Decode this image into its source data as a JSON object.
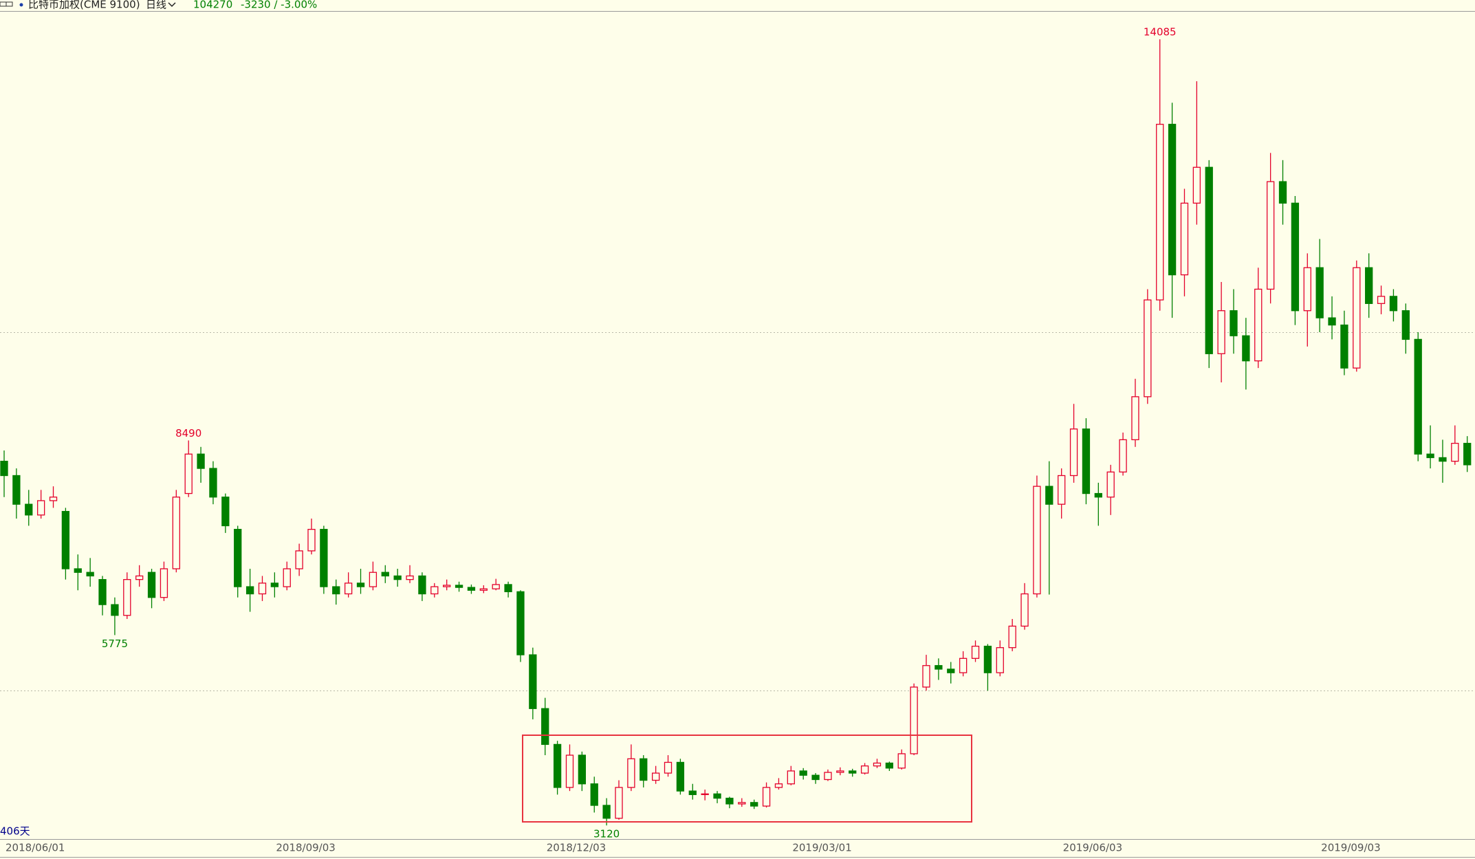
{
  "header": {
    "symbol": "比特币加权(CME 9100)",
    "period": "日线",
    "price": 104270,
    "change": "-3230 / -3.00%"
  },
  "chart_data": {
    "type": "candlestick",
    "days_label": "406天",
    "categories": [
      "2018/06/01",
      null,
      null,
      null,
      null,
      null,
      null,
      null,
      null,
      null,
      null,
      null,
      null,
      null,
      null,
      null,
      null,
      null,
      null,
      null,
      null,
      null,
      "2018/09/03",
      null,
      null,
      null,
      null,
      null,
      null,
      null,
      null,
      null,
      null,
      null,
      null,
      null,
      null,
      null,
      null,
      null,
      null,
      null,
      null,
      null,
      "2018/12/03",
      null,
      null,
      null,
      null,
      null,
      null,
      null,
      null,
      null,
      null,
      null,
      null,
      null,
      null,
      null,
      null,
      null,
      null,
      null,
      "2019/03/01",
      null,
      null,
      null,
      null,
      null,
      null,
      null,
      null,
      null,
      null,
      null,
      null,
      null,
      null,
      null,
      null,
      null,
      null,
      null,
      null,
      null,
      "2019/06/03",
      null,
      null,
      null,
      null,
      null,
      null,
      null,
      null,
      null,
      null,
      null,
      null,
      null,
      null,
      null,
      null,
      null,
      null,
      null,
      null,
      "2019/09/03",
      null,
      null,
      null,
      null,
      null,
      null,
      null,
      null,
      null,
      null,
      null,
      null
    ],
    "ohlc": [
      [
        8200,
        8350,
        7700,
        8000
      ],
      [
        8000,
        8100,
        7400,
        7600
      ],
      [
        7600,
        7800,
        7300,
        7450
      ],
      [
        7450,
        7800,
        7400,
        7650
      ],
      [
        7650,
        7850,
        7550,
        7700
      ],
      [
        7500,
        7550,
        6550,
        6700
      ],
      [
        6700,
        6900,
        6400,
        6650
      ],
      [
        6650,
        6850,
        6450,
        6600
      ],
      [
        6550,
        6600,
        6050,
        6200
      ],
      [
        6200,
        6300,
        5775,
        6050
      ],
      [
        6050,
        6650,
        6000,
        6550
      ],
      [
        6550,
        6750,
        6450,
        6600
      ],
      [
        6650,
        6700,
        6150,
        6300
      ],
      [
        6300,
        6800,
        6250,
        6700
      ],
      [
        6700,
        7800,
        6650,
        7700
      ],
      [
        7750,
        8490,
        7700,
        8300
      ],
      [
        8300,
        8400,
        7900,
        8100
      ],
      [
        8100,
        8200,
        7600,
        7700
      ],
      [
        7700,
        7750,
        7200,
        7300
      ],
      [
        7250,
        7300,
        6300,
        6450
      ],
      [
        6450,
        6700,
        6100,
        6350
      ],
      [
        6350,
        6600,
        6250,
        6500
      ],
      [
        6500,
        6650,
        6300,
        6450
      ],
      [
        6450,
        6800,
        6400,
        6700
      ],
      [
        6700,
        7050,
        6600,
        6950
      ],
      [
        6950,
        7400,
        6900,
        7250
      ],
      [
        7250,
        7300,
        6350,
        6450
      ],
      [
        6450,
        6550,
        6200,
        6350
      ],
      [
        6350,
        6650,
        6300,
        6500
      ],
      [
        6500,
        6700,
        6350,
        6450
      ],
      [
        6450,
        6800,
        6400,
        6650
      ],
      [
        6650,
        6750,
        6500,
        6600
      ],
      [
        6600,
        6700,
        6450,
        6550
      ],
      [
        6550,
        6750,
        6500,
        6600
      ],
      [
        6600,
        6650,
        6250,
        6350
      ],
      [
        6350,
        6500,
        6300,
        6450
      ],
      [
        6450,
        6550,
        6400,
        6470
      ],
      [
        6470,
        6520,
        6380,
        6440
      ],
      [
        6440,
        6480,
        6350,
        6400
      ],
      [
        6400,
        6470,
        6360,
        6420
      ],
      [
        6420,
        6560,
        6400,
        6480
      ],
      [
        6480,
        6520,
        6300,
        6380
      ],
      [
        6380,
        6400,
        5400,
        5500
      ],
      [
        5500,
        5600,
        4600,
        4750
      ],
      [
        4750,
        4900,
        4100,
        4250
      ],
      [
        4250,
        4300,
        3550,
        3650
      ],
      [
        3650,
        4250,
        3600,
        4100
      ],
      [
        4100,
        4150,
        3600,
        3700
      ],
      [
        3700,
        3800,
        3300,
        3400
      ],
      [
        3400,
        3500,
        3120,
        3220
      ],
      [
        3220,
        3750,
        3200,
        3650
      ],
      [
        3650,
        4250,
        3600,
        4050
      ],
      [
        4050,
        4100,
        3650,
        3750
      ],
      [
        3750,
        3950,
        3700,
        3850
      ],
      [
        3850,
        4100,
        3800,
        4000
      ],
      [
        4000,
        4050,
        3550,
        3600
      ],
      [
        3600,
        3700,
        3480,
        3550
      ],
      [
        3550,
        3620,
        3470,
        3560
      ],
      [
        3560,
        3600,
        3430,
        3500
      ],
      [
        3500,
        3520,
        3360,
        3420
      ],
      [
        3420,
        3500,
        3380,
        3440
      ],
      [
        3440,
        3480,
        3350,
        3390
      ],
      [
        3390,
        3720,
        3370,
        3650
      ],
      [
        3650,
        3780,
        3620,
        3700
      ],
      [
        3700,
        3950,
        3680,
        3880
      ],
      [
        3880,
        3920,
        3760,
        3820
      ],
      [
        3820,
        3850,
        3700,
        3760
      ],
      [
        3760,
        3900,
        3740,
        3860
      ],
      [
        3860,
        3930,
        3820,
        3880
      ],
      [
        3880,
        3910,
        3800,
        3850
      ],
      [
        3850,
        3990,
        3830,
        3950
      ],
      [
        3950,
        4050,
        3920,
        3990
      ],
      [
        3990,
        4010,
        3880,
        3920
      ],
      [
        3920,
        4180,
        3900,
        4120
      ],
      [
        4120,
        5100,
        4100,
        5050
      ],
      [
        5050,
        5500,
        5000,
        5350
      ],
      [
        5350,
        5450,
        5150,
        5300
      ],
      [
        5300,
        5400,
        5100,
        5250
      ],
      [
        5250,
        5550,
        5200,
        5450
      ],
      [
        5450,
        5700,
        5400,
        5620
      ],
      [
        5620,
        5650,
        5000,
        5250
      ],
      [
        5250,
        5700,
        5200,
        5600
      ],
      [
        5600,
        6000,
        5550,
        5900
      ],
      [
        5900,
        6500,
        5850,
        6350
      ],
      [
        6350,
        8000,
        6300,
        7850
      ],
      [
        7850,
        8200,
        6340,
        7600
      ],
      [
        7600,
        8100,
        7400,
        8000
      ],
      [
        8000,
        9000,
        7900,
        8650
      ],
      [
        8650,
        8800,
        7600,
        7750
      ],
      [
        7750,
        7900,
        7300,
        7700
      ],
      [
        7700,
        8150,
        7450,
        8050
      ],
      [
        8050,
        8600,
        8000,
        8500
      ],
      [
        8500,
        9350,
        8400,
        9100
      ],
      [
        9100,
        10600,
        9000,
        10450
      ],
      [
        10450,
        14085,
        10300,
        12900
      ],
      [
        12900,
        13200,
        10200,
        10800
      ],
      [
        10800,
        12000,
        10500,
        11800
      ],
      [
        11800,
        13500,
        11500,
        12300
      ],
      [
        12300,
        12400,
        9500,
        9700
      ],
      [
        9700,
        10700,
        9300,
        10300
      ],
      [
        10300,
        10600,
        9700,
        9950
      ],
      [
        9950,
        10200,
        9200,
        9600
      ],
      [
        9600,
        10900,
        9500,
        10600
      ],
      [
        10600,
        12500,
        10400,
        12100
      ],
      [
        12100,
        12400,
        11500,
        11800
      ],
      [
        11800,
        11900,
        10100,
        10300
      ],
      [
        10300,
        11100,
        9800,
        10900
      ],
      [
        10900,
        11300,
        10000,
        10200
      ],
      [
        10200,
        10500,
        9900,
        10100
      ],
      [
        10100,
        10300,
        9400,
        9500
      ],
      [
        9500,
        11000,
        9450,
        10900
      ],
      [
        10900,
        11100,
        10200,
        10400
      ],
      [
        10400,
        10650,
        10250,
        10500
      ],
      [
        10500,
        10600,
        10150,
        10300
      ],
      [
        10300,
        10400,
        9700,
        9900
      ],
      [
        9900,
        10000,
        8200,
        8300
      ],
      [
        8300,
        8700,
        8100,
        8250
      ],
      [
        8250,
        8500,
        7900,
        8200
      ],
      [
        8200,
        8700,
        8150,
        8450
      ],
      [
        8450,
        8550,
        8050,
        8150
      ]
    ],
    "ylim": [
      2930,
      14480
    ],
    "grid_lines": [
      5000,
      10000
    ],
    "up_color": "#e4002b",
    "down_color": "#008000",
    "annotations": [
      14085,
      8490,
      5775,
      3120
    ]
  }
}
